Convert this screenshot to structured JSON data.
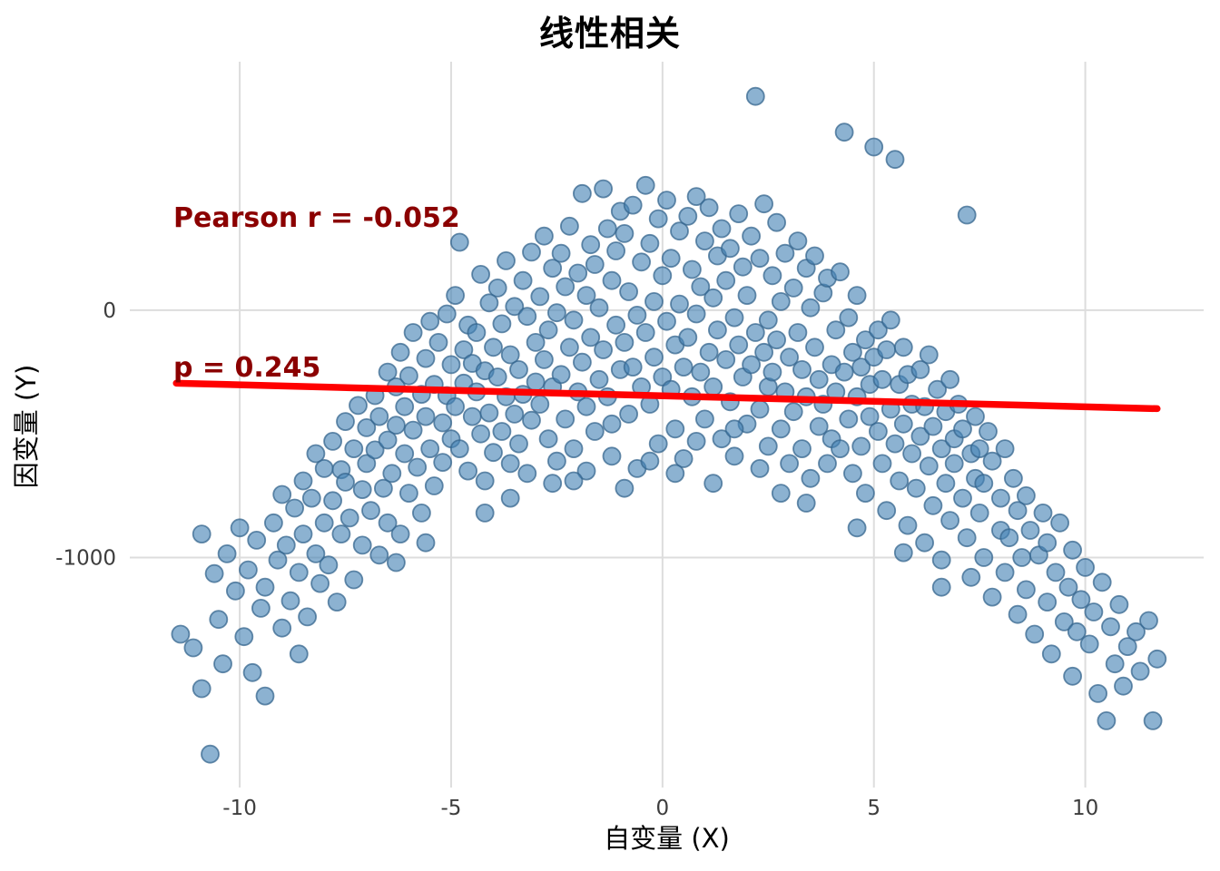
{
  "chart_data": {
    "type": "scatter",
    "title": "线性相关",
    "xlabel": "自变量 (X)",
    "ylabel": "因变量 (Y)",
    "annotation": {
      "line1": "Pearson r = -0.052",
      "line2": "p = 0.245",
      "color": "#8B0000"
    },
    "stats": {
      "pearson_r": -0.052,
      "p_value": 0.245
    },
    "x_ticks": [
      -10,
      -5,
      0,
      5,
      10
    ],
    "y_ticks": [
      0,
      -1000
    ],
    "xlim": [
      -12.6,
      12.8
    ],
    "ylim": [
      -1930,
      1005
    ],
    "grid": true,
    "legend": false,
    "colors": {
      "point_fill": "#4682B4",
      "point_edge": "#36658D",
      "trend_line": "#FF0000",
      "gridline": "#DDDDDD",
      "tick_label": "#3D3D3D",
      "title_text": "#000000",
      "annotation_text": "#8B0000"
    },
    "trend_line": {
      "x1": -11.5,
      "y1": -295,
      "x2": 11.7,
      "y2": -398
    },
    "points": [
      [
        -11.4,
        -1310
      ],
      [
        -11.1,
        -1365
      ],
      [
        -10.9,
        -1530
      ],
      [
        -10.9,
        -905
      ],
      [
        -10.7,
        -1795
      ],
      [
        -10.6,
        -1065
      ],
      [
        -10.5,
        -1250
      ],
      [
        -10.4,
        -1430
      ],
      [
        -10.3,
        -985
      ],
      [
        -10.1,
        -1135
      ],
      [
        -10.0,
        -880
      ],
      [
        -9.9,
        -1320
      ],
      [
        -9.8,
        -1050
      ],
      [
        -9.7,
        -1465
      ],
      [
        -9.6,
        -930
      ],
      [
        -9.5,
        -1205
      ],
      [
        -9.4,
        -1120
      ],
      [
        -9.4,
        -1560
      ],
      [
        -9.2,
        -860
      ],
      [
        -9.1,
        -1010
      ],
      [
        -9.0,
        -1285
      ],
      [
        -9.0,
        -745
      ],
      [
        -8.9,
        -950
      ],
      [
        -8.8,
        -1175
      ],
      [
        -8.7,
        -800
      ],
      [
        -8.6,
        -1390
      ],
      [
        -8.6,
        -1060
      ],
      [
        -8.5,
        -690
      ],
      [
        -8.5,
        -905
      ],
      [
        -8.4,
        -1240
      ],
      [
        -8.3,
        -760
      ],
      [
        -8.2,
        -985
      ],
      [
        -8.2,
        -580
      ],
      [
        -8.1,
        -1105
      ],
      [
        -8.0,
        -860
      ],
      [
        -8.0,
        -640
      ],
      [
        -7.9,
        -1030
      ],
      [
        -7.8,
        -530
      ],
      [
        -7.8,
        -770
      ],
      [
        -7.7,
        -1180
      ],
      [
        -7.6,
        -645
      ],
      [
        -7.6,
        -905
      ],
      [
        -7.5,
        -450
      ],
      [
        -7.5,
        -695
      ],
      [
        -7.4,
        -840
      ],
      [
        -7.3,
        -560
      ],
      [
        -7.3,
        -1090
      ],
      [
        -7.2,
        -385
      ],
      [
        -7.1,
        -725
      ],
      [
        -7.1,
        -950
      ],
      [
        -7.0,
        -475
      ],
      [
        -7.0,
        -620
      ],
      [
        -6.9,
        -810
      ],
      [
        -6.8,
        -345
      ],
      [
        -6.8,
        -565
      ],
      [
        -6.7,
        -990
      ],
      [
        -6.7,
        -430
      ],
      [
        -6.6,
        -720
      ],
      [
        -6.5,
        -250
      ],
      [
        -6.5,
        -525
      ],
      [
        -6.5,
        -860
      ],
      [
        -6.4,
        -660
      ],
      [
        -6.3,
        -310
      ],
      [
        -6.3,
        -465
      ],
      [
        -6.2,
        -905
      ],
      [
        -6.2,
        -170
      ],
      [
        -6.1,
        -580
      ],
      [
        -6.1,
        -390
      ],
      [
        -6.0,
        -740
      ],
      [
        -6.0,
        -265
      ],
      [
        -5.9,
        -485
      ],
      [
        -5.9,
        -90
      ],
      [
        -5.8,
        -635
      ],
      [
        -5.7,
        -340
      ],
      [
        -5.7,
        -820
      ],
      [
        -5.6,
        -195
      ],
      [
        -5.6,
        -430
      ],
      [
        -5.5,
        -560
      ],
      [
        -5.5,
        -45
      ],
      [
        -5.4,
        -300
      ],
      [
        -5.4,
        -710
      ],
      [
        -5.3,
        -130
      ],
      [
        -5.2,
        -455
      ],
      [
        -5.2,
        -615
      ],
      [
        -5.1,
        -15
      ],
      [
        -5.1,
        -345
      ],
      [
        -5.0,
        -520
      ],
      [
        -5.0,
        -220
      ],
      [
        -4.9,
        -390
      ],
      [
        -4.9,
        60
      ],
      [
        -4.8,
        275
      ],
      [
        -4.8,
        -560
      ],
      [
        -4.7,
        -160
      ],
      [
        -4.7,
        -295
      ],
      [
        -4.6,
        -650
      ],
      [
        -4.6,
        -60
      ],
      [
        -4.5,
        -430
      ],
      [
        -4.5,
        -215
      ],
      [
        -4.4,
        -90
      ],
      [
        -4.4,
        -330
      ],
      [
        -4.3,
        145
      ],
      [
        -4.3,
        -500
      ],
      [
        -4.2,
        -245
      ],
      [
        -4.2,
        -690
      ],
      [
        -4.1,
        30
      ],
      [
        -4.1,
        -415
      ],
      [
        -4.0,
        -150
      ],
      [
        -4.0,
        -575
      ],
      [
        -3.9,
        -270
      ],
      [
        -3.9,
        90
      ],
      [
        -3.8,
        -490
      ],
      [
        -3.8,
        -55
      ],
      [
        -3.7,
        -350
      ],
      [
        -3.7,
        200
      ],
      [
        -3.6,
        -620
      ],
      [
        -3.6,
        -180
      ],
      [
        -3.5,
        -420
      ],
      [
        -3.5,
        15
      ],
      [
        -3.4,
        -240
      ],
      [
        -3.4,
        -540
      ],
      [
        -3.3,
        120
      ],
      [
        -3.3,
        -340
      ],
      [
        -3.2,
        -25
      ],
      [
        -3.2,
        -660
      ],
      [
        -3.1,
        235
      ],
      [
        -3.1,
        -445
      ],
      [
        -3.0,
        -130
      ],
      [
        -3.0,
        -290
      ],
      [
        -2.9,
        55
      ],
      [
        -2.9,
        -380
      ],
      [
        -2.8,
        -200
      ],
      [
        -2.8,
        300
      ],
      [
        -2.7,
        -520
      ],
      [
        -2.7,
        -80
      ],
      [
        -2.6,
        170
      ],
      [
        -2.6,
        -310
      ],
      [
        -2.5,
        -610
      ],
      [
        -2.5,
        -10
      ],
      [
        -2.4,
        230
      ],
      [
        -2.4,
        -260
      ],
      [
        -2.3,
        -440
      ],
      [
        -2.3,
        95
      ],
      [
        -2.2,
        -150
      ],
      [
        -2.2,
        340
      ],
      [
        -2.1,
        -560
      ],
      [
        -2.1,
        -40
      ],
      [
        -2.0,
        150
      ],
      [
        -2.0,
        -330
      ],
      [
        -1.9,
        472
      ],
      [
        -1.9,
        -210
      ],
      [
        -1.8,
        60
      ],
      [
        -1.8,
        -390
      ],
      [
        -1.7,
        265
      ],
      [
        -1.7,
        -110
      ],
      [
        -1.6,
        -490
      ],
      [
        -1.6,
        185
      ],
      [
        -1.5,
        -280
      ],
      [
        -1.5,
        10
      ],
      [
        -1.4,
        491
      ],
      [
        -1.4,
        -160
      ],
      [
        -1.3,
        330
      ],
      [
        -1.3,
        -350
      ],
      [
        -1.2,
        120
      ],
      [
        -1.2,
        -590
      ],
      [
        -1.1,
        -60
      ],
      [
        -1.1,
        240
      ],
      [
        -1.0,
        -240
      ],
      [
        -1.0,
        400
      ],
      [
        -0.9,
        -130
      ],
      [
        -0.9,
        310
      ],
      [
        -0.8,
        -420
      ],
      [
        -0.8,
        75
      ],
      [
        -0.7,
        425
      ],
      [
        -0.7,
        -230
      ],
      [
        -0.6,
        -20
      ],
      [
        -0.6,
        -640
      ],
      [
        -0.5,
        195
      ],
      [
        -0.5,
        -310
      ],
      [
        -0.4,
        505
      ],
      [
        -0.4,
        -90
      ],
      [
        -0.3,
        270
      ],
      [
        -0.3,
        -380
      ],
      [
        -0.2,
        35
      ],
      [
        -0.2,
        -190
      ],
      [
        -0.1,
        370
      ],
      [
        -0.1,
        -540
      ],
      [
        0.0,
        140
      ],
      [
        0.0,
        -270
      ],
      [
        0.1,
        -45
      ],
      [
        0.1,
        445
      ],
      [
        0.2,
        -320
      ],
      [
        0.2,
        210
      ],
      [
        0.3,
        -140
      ],
      [
        0.3,
        -480
      ],
      [
        0.4,
        320
      ],
      [
        0.4,
        25
      ],
      [
        0.5,
        -230
      ],
      [
        0.5,
        -600
      ],
      [
        0.6,
        380
      ],
      [
        0.6,
        -110
      ],
      [
        0.7,
        165
      ],
      [
        0.7,
        -350
      ],
      [
        0.8,
        -15
      ],
      [
        0.8,
        460
      ],
      [
        0.9,
        -250
      ],
      [
        0.9,
        95
      ],
      [
        1.0,
        -440
      ],
      [
        1.0,
        280
      ],
      [
        1.1,
        -170
      ],
      [
        1.1,
        415
      ],
      [
        1.2,
        50
      ],
      [
        1.2,
        -310
      ],
      [
        1.3,
        220
      ],
      [
        1.3,
        -80
      ],
      [
        1.4,
        -520
      ],
      [
        1.4,
        330
      ],
      [
        1.5,
        -200
      ],
      [
        1.5,
        120
      ],
      [
        1.6,
        -370
      ],
      [
        1.6,
        250
      ],
      [
        1.7,
        -30
      ],
      [
        1.7,
        -590
      ],
      [
        1.8,
        390
      ],
      [
        1.8,
        -140
      ],
      [
        1.9,
        175
      ],
      [
        1.9,
        -270
      ],
      [
        2.0,
        60
      ],
      [
        2.0,
        -460
      ],
      [
        2.1,
        300
      ],
      [
        2.1,
        -220
      ],
      [
        2.2,
        865
      ],
      [
        2.2,
        -90
      ],
      [
        2.3,
        210
      ],
      [
        2.3,
        -400
      ],
      [
        2.4,
        -170
      ],
      [
        2.4,
        430
      ],
      [
        2.5,
        -40
      ],
      [
        2.5,
        -310
      ],
      [
        2.5,
        -550
      ],
      [
        2.6,
        140
      ],
      [
        2.6,
        -250
      ],
      [
        2.7,
        355
      ],
      [
        2.7,
        -120
      ],
      [
        2.8,
        -480
      ],
      [
        2.8,
        35
      ],
      [
        2.9,
        -330
      ],
      [
        2.9,
        230
      ],
      [
        3.0,
        -190
      ],
      [
        3.0,
        -620
      ],
      [
        3.1,
        90
      ],
      [
        3.1,
        -410
      ],
      [
        3.2,
        280
      ],
      [
        3.2,
        -90
      ],
      [
        3.3,
        -560
      ],
      [
        3.3,
        -240
      ],
      [
        3.4,
        170
      ],
      [
        3.4,
        -350
      ],
      [
        3.5,
        10
      ],
      [
        3.5,
        -680
      ],
      [
        3.6,
        -150
      ],
      [
        3.6,
        220
      ],
      [
        3.7,
        -470
      ],
      [
        3.7,
        -280
      ],
      [
        3.8,
        70
      ],
      [
        3.8,
        -380
      ],
      [
        3.9,
        -620
      ],
      [
        3.9,
        130
      ],
      [
        4.0,
        -220
      ],
      [
        4.0,
        -520
      ],
      [
        4.1,
        -80
      ],
      [
        4.1,
        -330
      ],
      [
        4.2,
        -560
      ],
      [
        4.2,
        155
      ],
      [
        4.3,
        720
      ],
      [
        4.3,
        -250
      ],
      [
        4.4,
        -440
      ],
      [
        4.4,
        -30
      ],
      [
        4.5,
        -660
      ],
      [
        4.5,
        -170
      ],
      [
        4.6,
        -350
      ],
      [
        4.6,
        60
      ],
      [
        4.7,
        -550
      ],
      [
        4.7,
        -230
      ],
      [
        4.8,
        -740
      ],
      [
        4.8,
        -120
      ],
      [
        4.9,
        -430
      ],
      [
        4.9,
        -300
      ],
      [
        5.0,
        660
      ],
      [
        5.0,
        -190
      ],
      [
        5.1,
        -490
      ],
      [
        5.1,
        -80
      ],
      [
        5.2,
        -620
      ],
      [
        5.2,
        -280
      ],
      [
        5.3,
        -160
      ],
      [
        5.3,
        -810
      ],
      [
        5.4,
        -400
      ],
      [
        5.4,
        -40
      ],
      [
        5.5,
        610
      ],
      [
        5.5,
        -540
      ],
      [
        5.6,
        -300
      ],
      [
        5.6,
        -690
      ],
      [
        5.7,
        -150
      ],
      [
        5.7,
        -460
      ],
      [
        5.8,
        -870
      ],
      [
        5.8,
        -260
      ],
      [
        5.9,
        -580
      ],
      [
        5.9,
        -380
      ],
      [
        6.0,
        -720
      ],
      [
        6.1,
        -240
      ],
      [
        6.1,
        -510
      ],
      [
        6.2,
        -940
      ],
      [
        6.2,
        -390
      ],
      [
        6.3,
        -630
      ],
      [
        6.3,
        -180
      ],
      [
        6.4,
        -790
      ],
      [
        6.4,
        -470
      ],
      [
        6.5,
        -320
      ],
      [
        6.6,
        -560
      ],
      [
        6.6,
        -1010
      ],
      [
        6.7,
        -410
      ],
      [
        6.7,
        -700
      ],
      [
        6.8,
        -280
      ],
      [
        6.8,
        -850
      ],
      [
        6.9,
        -520
      ],
      [
        6.9,
        -620
      ],
      [
        7.0,
        -380
      ],
      [
        7.1,
        -760
      ],
      [
        7.1,
        -480
      ],
      [
        7.2,
        385
      ],
      [
        7.2,
        -920
      ],
      [
        7.3,
        -580
      ],
      [
        7.3,
        -1080
      ],
      [
        7.4,
        -680
      ],
      [
        7.4,
        -430
      ],
      [
        7.5,
        -820
      ],
      [
        7.5,
        -560
      ],
      [
        7.6,
        -1000
      ],
      [
        7.6,
        -700
      ],
      [
        7.7,
        -490
      ],
      [
        7.8,
        -1160
      ],
      [
        7.8,
        -610
      ],
      [
        8.0,
        -890
      ],
      [
        8.0,
        -760
      ],
      [
        8.1,
        -1060
      ],
      [
        8.1,
        -560
      ],
      [
        8.2,
        -920
      ],
      [
        8.3,
        -680
      ],
      [
        8.4,
        -1230
      ],
      [
        8.4,
        -810
      ],
      [
        8.5,
        -1000
      ],
      [
        8.6,
        -750
      ],
      [
        8.6,
        -1130
      ],
      [
        8.7,
        -890
      ],
      [
        8.8,
        -1310
      ],
      [
        8.9,
        -990
      ],
      [
        9.0,
        -820
      ],
      [
        9.1,
        -1180
      ],
      [
        9.1,
        -940
      ],
      [
        9.2,
        -1390
      ],
      [
        9.3,
        -1060
      ],
      [
        9.4,
        -860
      ],
      [
        9.5,
        -1260
      ],
      [
        9.6,
        -1120
      ],
      [
        9.7,
        -1480
      ],
      [
        9.7,
        -970
      ],
      [
        9.8,
        -1300
      ],
      [
        9.9,
        -1170
      ],
      [
        10.0,
        -1040
      ],
      [
        10.1,
        -1350
      ],
      [
        10.2,
        -1220
      ],
      [
        10.3,
        -1550
      ],
      [
        10.4,
        -1100
      ],
      [
        10.5,
        -1660
      ],
      [
        10.6,
        -1280
      ],
      [
        10.7,
        -1430
      ],
      [
        10.8,
        -1190
      ],
      [
        10.9,
        -1520
      ],
      [
        11.0,
        -1360
      ],
      [
        11.2,
        -1300
      ],
      [
        11.3,
        -1460
      ],
      [
        11.5,
        -1255
      ],
      [
        11.6,
        -1660
      ],
      [
        11.7,
        -1410
      ],
      [
        -2.6,
        -700
      ],
      [
        -1.8,
        -650
      ],
      [
        -0.9,
        -720
      ],
      [
        0.3,
        -660
      ],
      [
        1.2,
        -700
      ],
      [
        2.8,
        -740
      ],
      [
        -3.6,
        -760
      ],
      [
        3.4,
        -780
      ],
      [
        -4.2,
        -820
      ],
      [
        4.6,
        -880
      ],
      [
        -1.2,
        -460
      ],
      [
        0.8,
        -530
      ],
      [
        -0.3,
        -610
      ],
      [
        1.7,
        -480
      ],
      [
        -2.1,
        -690
      ],
      [
        2.3,
        -640
      ],
      [
        -5.6,
        -940
      ],
      [
        5.7,
        -980
      ],
      [
        -6.3,
        -1020
      ],
      [
        6.6,
        -1120
      ]
    ]
  }
}
